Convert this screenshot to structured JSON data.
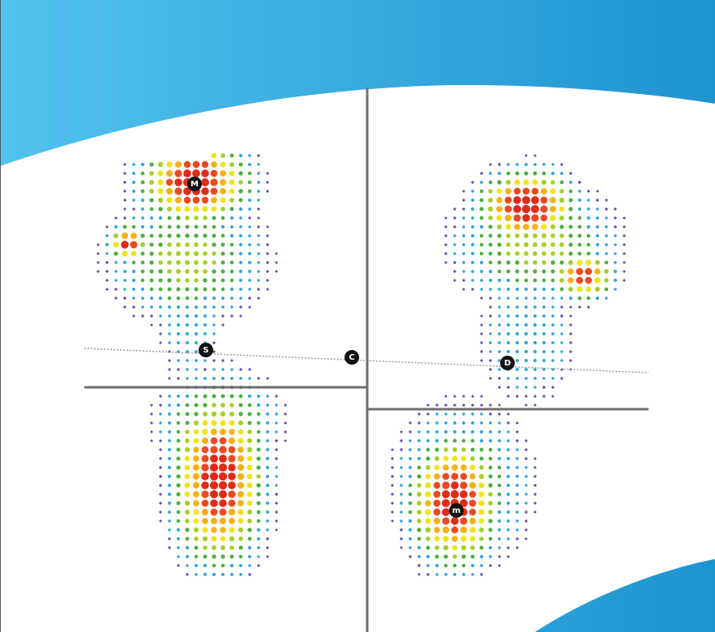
{
  "colors": {
    "background_top": "#1e9fd6",
    "background_top_light": "#52c3ee",
    "plate": "#ffffff",
    "axis_line": "#8a8a8a",
    "divider_line": "#6f6f6f",
    "marker_fill": "#111111",
    "pressure_scale": [
      "#6a48a8",
      "#37a6d9",
      "#4caf43",
      "#a7cf2a",
      "#f2e316",
      "#f6b118",
      "#ea4a22",
      "#e02a1a"
    ]
  },
  "markers": [
    {
      "id": "M",
      "label": "M",
      "foot": "left"
    },
    {
      "id": "S",
      "label": "S",
      "foot": "left"
    },
    {
      "id": "C",
      "label": "C",
      "foot": "center"
    },
    {
      "id": "D",
      "label": "D",
      "foot": "right"
    },
    {
      "id": "m",
      "label": "m",
      "foot": "right"
    }
  ],
  "icons": {
    "scan_plate": "pressure-plate-icon"
  }
}
